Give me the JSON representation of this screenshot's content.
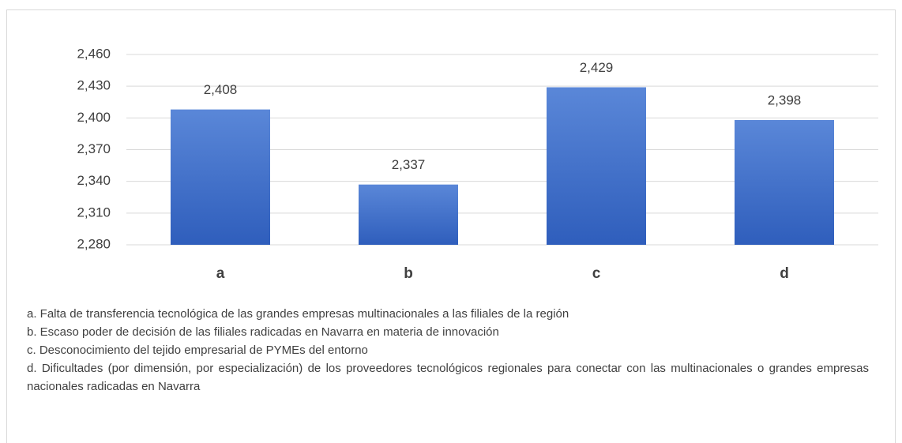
{
  "chart_data": {
    "type": "bar",
    "categories": [
      "a",
      "b",
      "c",
      "d"
    ],
    "values": [
      2.408,
      2.337,
      2.429,
      2.398
    ],
    "value_labels": [
      "2,408",
      "2,337",
      "2,429",
      "2,398"
    ],
    "color": "#4472c4",
    "ylim": [
      2.28,
      2.46
    ],
    "yticks": [
      {
        "value": 2.28,
        "label": "2,280"
      },
      {
        "value": 2.31,
        "label": "2,310"
      },
      {
        "value": 2.34,
        "label": "2,340"
      },
      {
        "value": 2.37,
        "label": "2,370"
      },
      {
        "value": 2.4,
        "label": "2,400"
      },
      {
        "value": 2.43,
        "label": "2,430"
      },
      {
        "value": 2.46,
        "label": "2,460"
      }
    ],
    "grid": true,
    "notes": [
      "a. Falta de transferencia tecnológica de las grandes empresas multinacionales a las filiales de la región",
      "b. Escaso poder de decisión de las filiales radicadas en Navarra en materia de innovación",
      "c. Desconocimiento del tejido empresarial de PYMEs del entorno",
      "d. Dificultades (por dimensión, por especialización) de los proveedores tecnológicos regionales para conectar con las multinacionales o grandes empresas nacionales radicadas en Navarra"
    ]
  }
}
